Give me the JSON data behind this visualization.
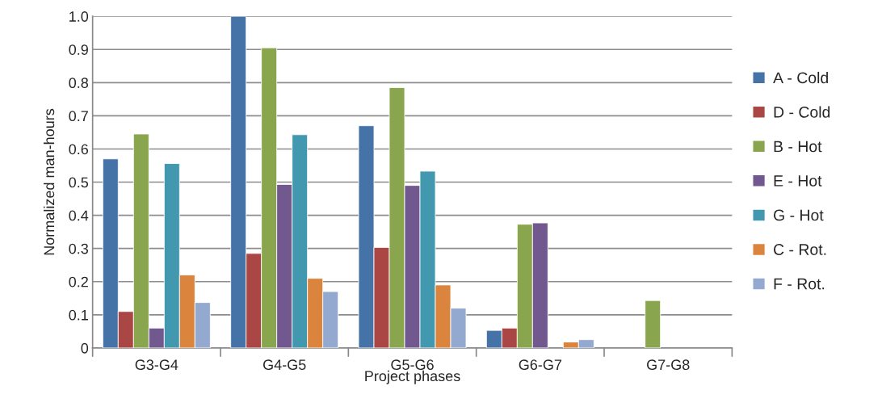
{
  "chart_data": {
    "type": "bar",
    "xlabel": "Project phases",
    "ylabel": "Normalized man-hours",
    "categories": [
      "G3-G4",
      "G4-G5",
      "G5-G6",
      "G6-G7",
      "G7-G8"
    ],
    "series": [
      {
        "name": "A - Cold",
        "color": "#4572a7",
        "values": [
          0.57,
          1.0,
          0.67,
          0.053,
          null
        ]
      },
      {
        "name": "D - Cold",
        "color": "#aa4643",
        "values": [
          0.11,
          0.285,
          0.303,
          0.06,
          null
        ]
      },
      {
        "name": "B - Hot",
        "color": "#89a54e",
        "values": [
          0.645,
          0.905,
          0.785,
          0.373,
          0.143
        ]
      },
      {
        "name": "E - Hot",
        "color": "#71588f",
        "values": [
          0.06,
          0.493,
          0.49,
          0.377,
          null
        ]
      },
      {
        "name": "G - Hot",
        "color": "#4198af",
        "values": [
          0.556,
          0.643,
          0.533,
          null,
          null
        ]
      },
      {
        "name": "C - Rot.",
        "color": "#db843d",
        "values": [
          0.22,
          0.21,
          0.19,
          0.018,
          null
        ]
      },
      {
        "name": "F - Rot.",
        "color": "#93a9cf",
        "values": [
          0.137,
          0.17,
          0.12,
          0.025,
          null
        ]
      }
    ],
    "ylim": [
      0,
      1.0
    ],
    "yticks": [
      0,
      0.1,
      0.2,
      0.3,
      0.4,
      0.5,
      0.6,
      0.7,
      0.8,
      0.9,
      {
        "value": 1.0,
        "label": "1.0"
      }
    ],
    "grid": "y",
    "legend": "right"
  }
}
